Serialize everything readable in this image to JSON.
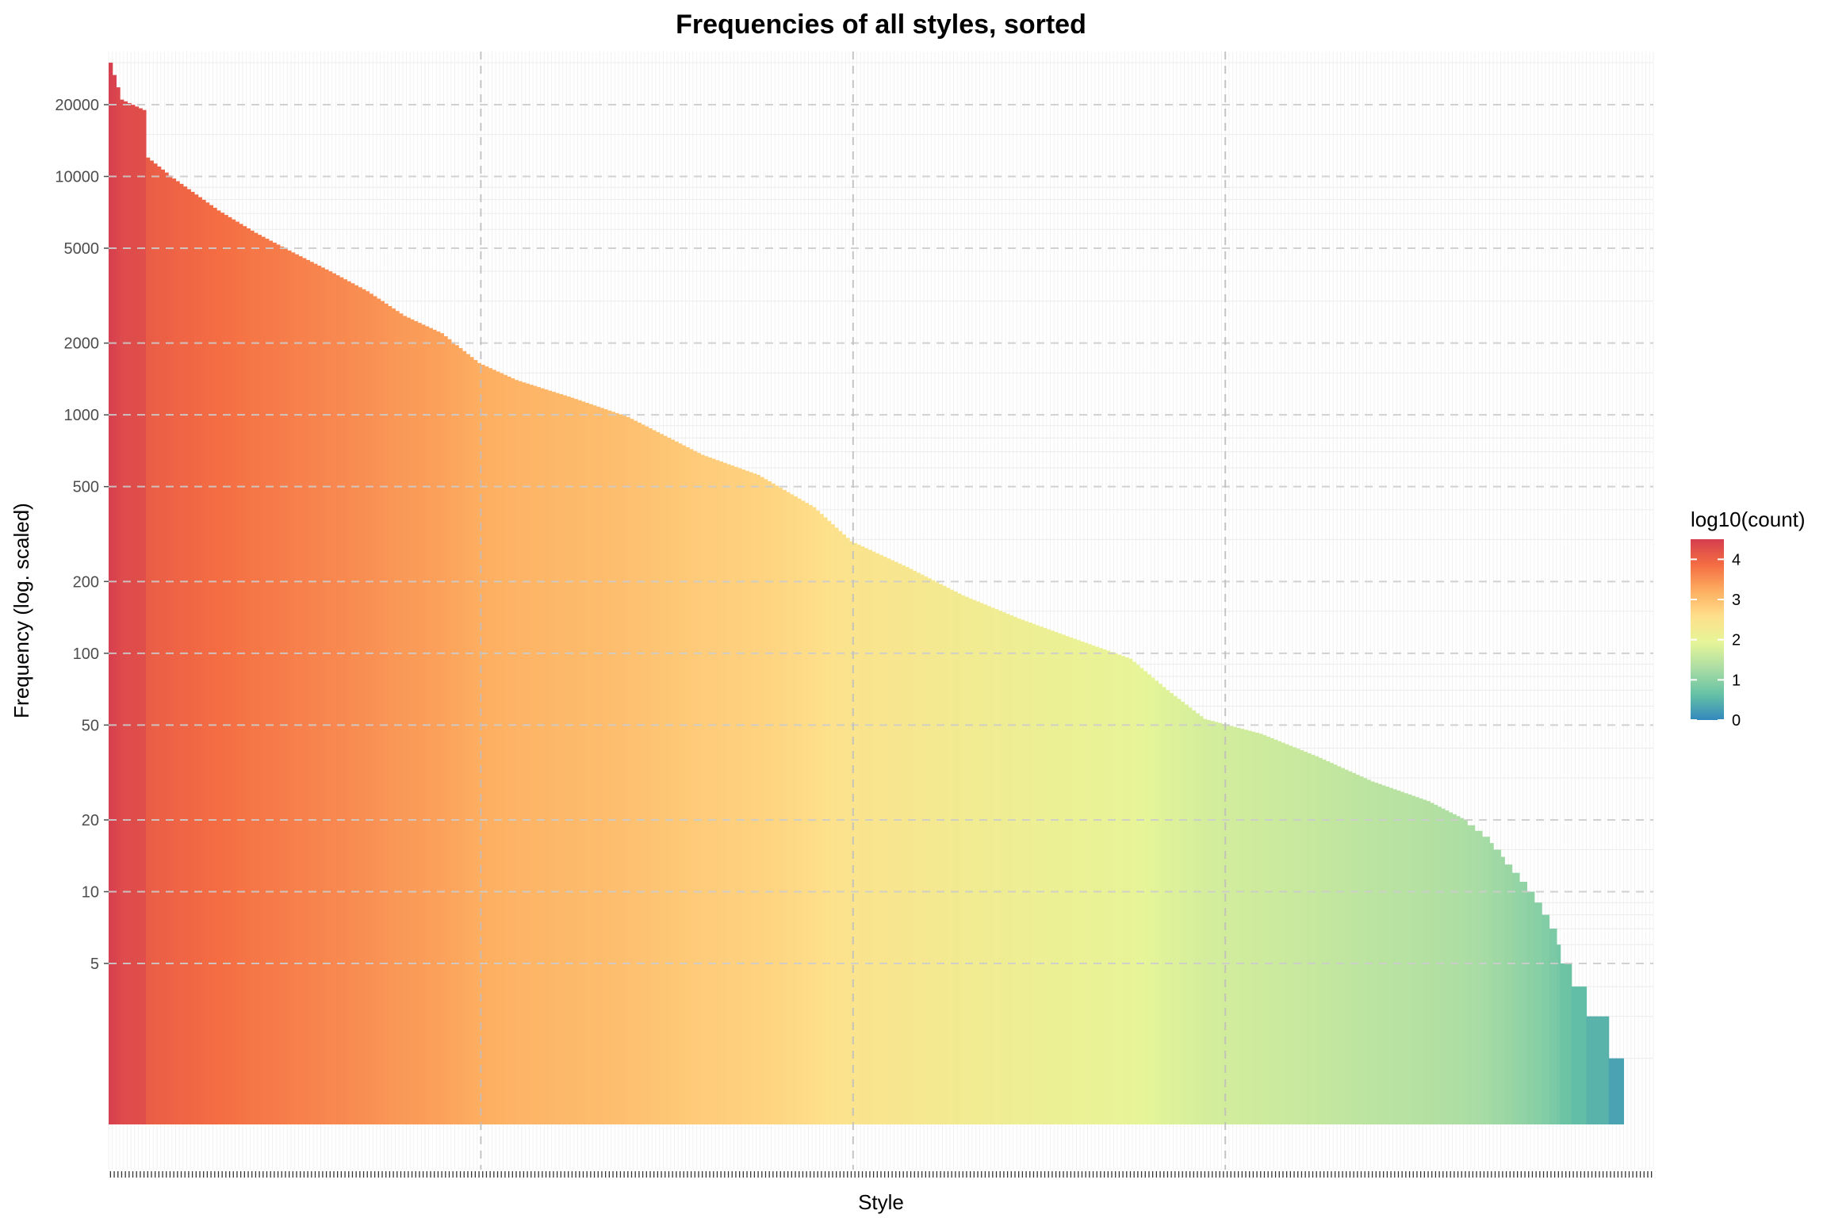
{
  "chart_data": {
    "type": "bar",
    "title": "Frequencies of all styles, sorted",
    "xlabel": "Style",
    "ylabel": "Frequency (log. scaled)",
    "y_scale": "log10",
    "ylim": [
      1,
      40000
    ],
    "y_ticks": [
      5,
      10,
      20,
      50,
      100,
      200,
      500,
      1000,
      2000,
      5000,
      10000,
      20000
    ],
    "y_tick_labels": [
      "5",
      "10",
      "20",
      "50",
      "100",
      "200",
      "500",
      "1000",
      "2000",
      "5000",
      "10000",
      "20000"
    ],
    "grid": true,
    "x_tick_labels_visible": false,
    "sorted": "descending",
    "profile": [
      {
        "rank": 1,
        "value": 30000
      },
      {
        "rank": 4,
        "value": 21000
      },
      {
        "rank": 10,
        "value": 19000
      },
      {
        "rank": 11,
        "value": 12000
      },
      {
        "rank": 18,
        "value": 9800
      },
      {
        "rank": 30,
        "value": 7200
      },
      {
        "rank": 40,
        "value": 5800
      },
      {
        "rank": 50,
        "value": 4800
      },
      {
        "rank": 60,
        "value": 4000
      },
      {
        "rank": 70,
        "value": 3300
      },
      {
        "rank": 80,
        "value": 2600
      },
      {
        "rank": 90,
        "value": 2200
      },
      {
        "rank": 100,
        "value": 1650
      },
      {
        "rank": 110,
        "value": 1400
      },
      {
        "rank": 125,
        "value": 1180
      },
      {
        "rank": 140,
        "value": 980
      },
      {
        "rank": 160,
        "value": 680
      },
      {
        "rank": 175,
        "value": 560
      },
      {
        "rank": 190,
        "value": 410
      },
      {
        "rank": 200,
        "value": 295
      },
      {
        "rank": 215,
        "value": 230
      },
      {
        "rank": 230,
        "value": 175
      },
      {
        "rank": 245,
        "value": 140
      },
      {
        "rank": 260,
        "value": 115
      },
      {
        "rank": 275,
        "value": 95
      },
      {
        "rank": 285,
        "value": 70
      },
      {
        "rank": 295,
        "value": 53
      },
      {
        "rank": 310,
        "value": 46
      },
      {
        "rank": 325,
        "value": 37
      },
      {
        "rank": 340,
        "value": 29
      },
      {
        "rank": 355,
        "value": 24
      },
      {
        "rank": 365,
        "value": 20
      },
      {
        "rank": 372,
        "value": 16
      },
      {
        "rank": 378,
        "value": 12
      },
      {
        "rank": 385,
        "value": 9
      },
      {
        "rank": 390,
        "value": 6
      },
      {
        "rank": 392,
        "value": 5
      },
      {
        "rank": 396,
        "value": 4
      },
      {
        "rank": 400,
        "value": 3
      },
      {
        "rank": 407,
        "value": 2
      }
    ],
    "n_bars": 407,
    "x_domain_slots": 415,
    "legend": {
      "title": "log10(count)",
      "labels": [
        "4",
        "3",
        "2",
        "1",
        "0"
      ],
      "values": [
        4,
        3,
        2,
        1,
        0
      ],
      "range": [
        0,
        4.5
      ],
      "position": "right",
      "palette": [
        "#3288bd",
        "#66c2a5",
        "#abdda4",
        "#e6f598",
        "#fee08b",
        "#fdae61",
        "#f46d43",
        "#d53e4f"
      ]
    }
  }
}
